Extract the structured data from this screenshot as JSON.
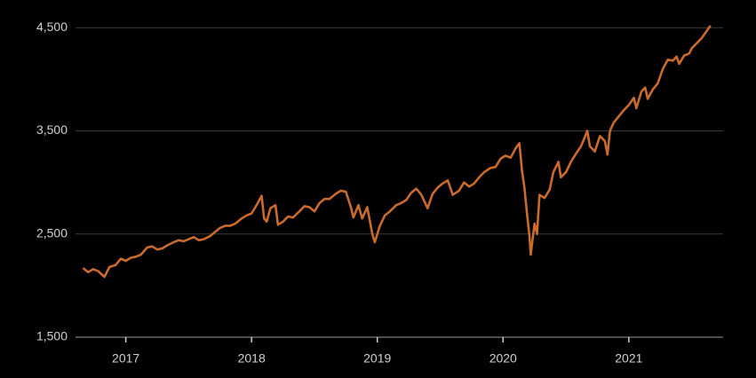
{
  "chart_data": {
    "type": "line",
    "x": [
      2016.66,
      2016.7,
      2016.74,
      2016.78,
      2016.83,
      2016.87,
      2016.92,
      2016.96,
      2017.0,
      2017.04,
      2017.08,
      2017.12,
      2017.17,
      2017.21,
      2017.25,
      2017.29,
      2017.33,
      2017.38,
      2017.42,
      2017.46,
      2017.5,
      2017.54,
      2017.58,
      2017.62,
      2017.67,
      2017.71,
      2017.75,
      2017.79,
      2017.83,
      2017.87,
      2017.92,
      2017.96,
      2018.0,
      2018.04,
      2018.08,
      2018.1,
      2018.12,
      2018.15,
      2018.19,
      2018.21,
      2018.25,
      2018.29,
      2018.33,
      2018.38,
      2018.42,
      2018.46,
      2018.5,
      2018.54,
      2018.58,
      2018.62,
      2018.67,
      2018.71,
      2018.75,
      2018.79,
      2018.81,
      2018.85,
      2018.88,
      2018.92,
      2018.96,
      2018.98,
      2019.02,
      2019.06,
      2019.1,
      2019.15,
      2019.19,
      2019.23,
      2019.27,
      2019.31,
      2019.35,
      2019.4,
      2019.44,
      2019.48,
      2019.52,
      2019.56,
      2019.6,
      2019.65,
      2019.69,
      2019.73,
      2019.77,
      2019.81,
      2019.85,
      2019.9,
      2019.94,
      2019.98,
      2020.02,
      2020.06,
      2020.1,
      2020.13,
      2020.15,
      2020.17,
      2020.19,
      2020.21,
      2020.22,
      2020.25,
      2020.27,
      2020.29,
      2020.33,
      2020.37,
      2020.4,
      2020.44,
      2020.46,
      2020.5,
      2020.54,
      2020.58,
      2020.62,
      2020.65,
      2020.67,
      2020.69,
      2020.73,
      2020.77,
      2020.81,
      2020.83,
      2020.85,
      2020.88,
      2020.92,
      2020.96,
      2021.0,
      2021.04,
      2021.06,
      2021.1,
      2021.13,
      2021.15,
      2021.19,
      2021.23,
      2021.27,
      2021.31,
      2021.35,
      2021.38,
      2021.4,
      2021.44,
      2021.48,
      2021.5,
      2021.54,
      2021.58,
      2021.62,
      2021.65
    ],
    "series": [
      {
        "color": "#c96b2c",
        "values": [
          2170,
          2130,
          2160,
          2140,
          2085,
          2180,
          2200,
          2260,
          2240,
          2270,
          2280,
          2300,
          2370,
          2380,
          2350,
          2360,
          2390,
          2420,
          2440,
          2430,
          2450,
          2470,
          2440,
          2450,
          2480,
          2520,
          2560,
          2580,
          2580,
          2600,
          2650,
          2680,
          2700,
          2780,
          2870,
          2650,
          2620,
          2750,
          2780,
          2590,
          2620,
          2670,
          2660,
          2720,
          2770,
          2760,
          2720,
          2800,
          2840,
          2840,
          2890,
          2920,
          2910,
          2760,
          2660,
          2780,
          2650,
          2760,
          2500,
          2420,
          2580,
          2680,
          2720,
          2780,
          2800,
          2830,
          2900,
          2940,
          2880,
          2750,
          2890,
          2950,
          2990,
          3020,
          2880,
          2920,
          3000,
          2960,
          2990,
          3050,
          3100,
          3140,
          3150,
          3230,
          3260,
          3240,
          3330,
          3380,
          3120,
          2950,
          2700,
          2480,
          2300,
          2600,
          2500,
          2880,
          2850,
          2930,
          3100,
          3200,
          3050,
          3100,
          3200,
          3280,
          3350,
          3440,
          3500,
          3350,
          3300,
          3450,
          3400,
          3270,
          3500,
          3580,
          3640,
          3700,
          3750,
          3820,
          3720,
          3880,
          3920,
          3810,
          3900,
          3960,
          4100,
          4190,
          4180,
          4220,
          4150,
          4230,
          4250,
          4300,
          4350,
          4400,
          4470,
          4520
        ]
      }
    ],
    "xlim": [
      2016.6,
      2021.75
    ],
    "xticks": [
      2017,
      2018,
      2019,
      2020,
      2021
    ],
    "ylim": [
      1500,
      4600
    ],
    "yticks": [
      {
        "value": 1500,
        "label": "1,500"
      },
      {
        "value": 2500,
        "label": "2,500"
      },
      {
        "value": 3500,
        "label": "3,500"
      },
      {
        "value": 4500,
        "label": "4,500"
      }
    ],
    "grid": true
  }
}
